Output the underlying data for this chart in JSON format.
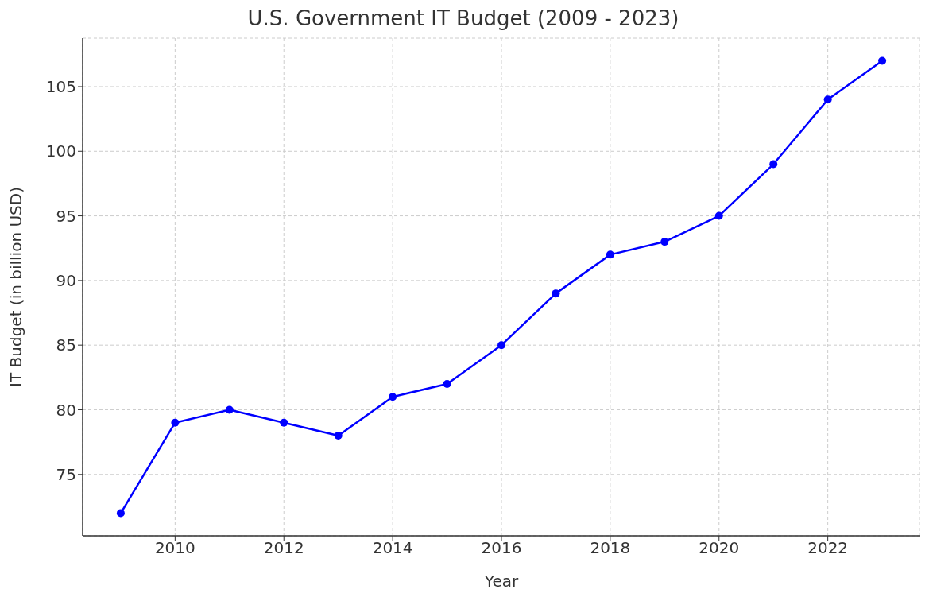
{
  "chart_data": {
    "type": "line",
    "title": "U.S. Government IT Budget (2009 - 2023)",
    "xlabel": "Year",
    "ylabel": "IT Budget (in billion USD)",
    "x": [
      2009,
      2010,
      2011,
      2012,
      2013,
      2014,
      2015,
      2016,
      2017,
      2018,
      2019,
      2020,
      2021,
      2022,
      2023
    ],
    "series": [
      {
        "color": "#0000ff",
        "values": [
          72,
          79,
          80,
          79,
          78,
          81,
          82,
          85,
          89,
          92,
          93,
          95,
          99,
          104,
          107
        ]
      }
    ],
    "xlim": [
      2008.3,
      2023.7
    ],
    "xticks": [
      2010,
      2012,
      2014,
      2016,
      2018,
      2020,
      2022
    ],
    "ylim": [
      70.25,
      108.75
    ],
    "yticks": [
      75,
      80,
      85,
      90,
      95,
      100,
      105
    ],
    "grid": true,
    "marker": "circle",
    "line_style": "solid"
  }
}
